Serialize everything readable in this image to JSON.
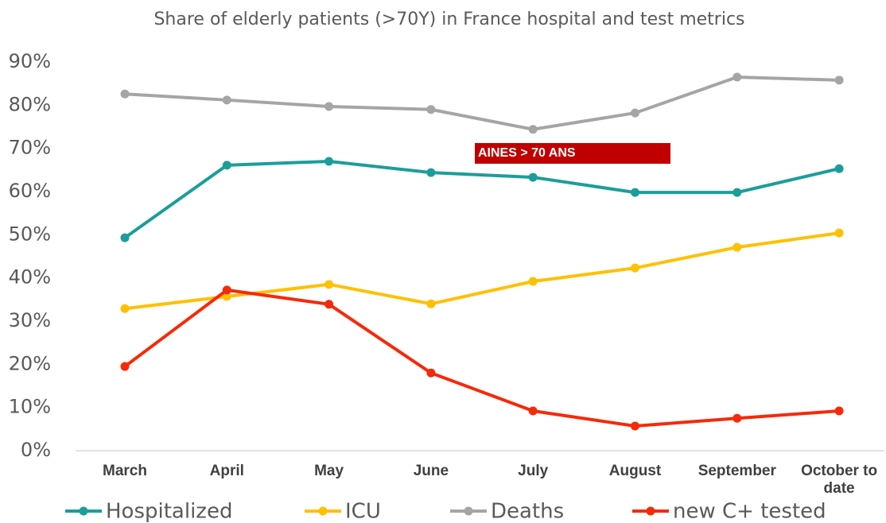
{
  "chart_data": {
    "type": "line",
    "title": "Share of elderly patients (>70Y) in France hospital and test metrics",
    "categories": [
      "March",
      "April",
      "May",
      "June",
      "July",
      "August",
      "September",
      "October to date"
    ],
    "series": [
      {
        "name": "Hospitalized",
        "color": "#1b9e9a",
        "values": [
          49.3,
          66.1,
          67.0,
          64.4,
          63.3,
          59.8,
          59.8,
          65.3
        ]
      },
      {
        "name": "ICU",
        "color": "#ffc000",
        "values": [
          32.9,
          35.7,
          38.5,
          34.0,
          39.2,
          42.3,
          47.1,
          50.4
        ]
      },
      {
        "name": "Deaths",
        "color": "#a5a5a5",
        "values": [
          82.6,
          81.2,
          79.7,
          79.0,
          74.4,
          78.2,
          86.5,
          85.8
        ]
      },
      {
        "name": "new C+ tested",
        "color": "#f52a0a",
        "values": [
          19.5,
          37.2,
          33.9,
          18.0,
          9.2,
          5.7,
          7.5,
          9.2
        ]
      }
    ],
    "ylim": [
      0,
      90
    ],
    "yticks": [
      {
        "value": 0,
        "label": "0%"
      },
      {
        "value": 10,
        "label": "10%"
      },
      {
        "value": 20,
        "label": "20%"
      },
      {
        "value": 30,
        "label": "30%"
      },
      {
        "value": 40,
        "label": "40%"
      },
      {
        "value": 50,
        "label": "50%"
      },
      {
        "value": 60,
        "label": "60%"
      },
      {
        "value": 70,
        "label": "70%"
      },
      {
        "value": 80,
        "label": "80%"
      },
      {
        "value": 90,
        "label": "90%"
      }
    ],
    "annotation": "AINES > 70 ANS",
    "legend": "bottom"
  }
}
